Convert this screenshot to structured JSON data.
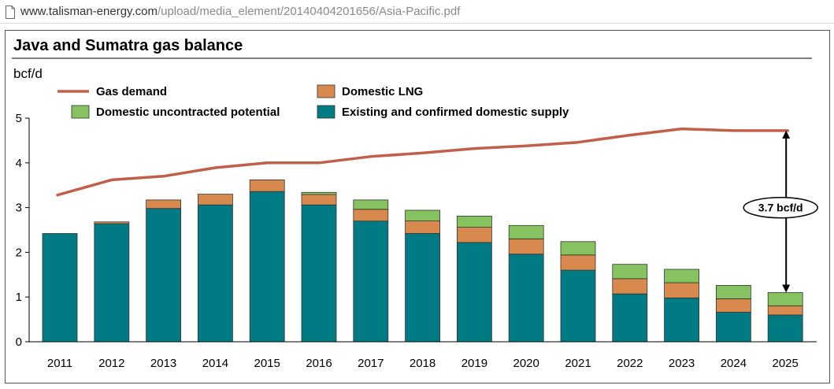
{
  "browser": {
    "url_host": "www.talisman-energy.com",
    "url_path": "/upload/media_element/20140404201656/Asia-Pacific.pdf",
    "page_icon": "document-icon"
  },
  "colors": {
    "demand_line": "#c0604a",
    "existing": "#007b83",
    "lng": "#d88a4e",
    "uncontracted": "#86c260",
    "bar_outline": "#333333"
  },
  "chart_data": {
    "type": "bar",
    "stacked": true,
    "title": "Java and Sumatra gas balance",
    "ylabel": "bcf/d",
    "xlabel": "",
    "ylim": [
      0,
      5
    ],
    "yticks": [
      0,
      1,
      2,
      3,
      4,
      5
    ],
    "grid": false,
    "legend_position": "top-left",
    "categories": [
      "2011",
      "2012",
      "2013",
      "2014",
      "2015",
      "2016",
      "2017",
      "2018",
      "2019",
      "2020",
      "2021",
      "2022",
      "2023",
      "2024",
      "2025"
    ],
    "series": [
      {
        "name": "Existing and confirmed domestic supply",
        "kind": "bar",
        "values": [
          2.42,
          2.64,
          2.98,
          3.06,
          3.36,
          3.06,
          2.7,
          2.42,
          2.22,
          1.96,
          1.6,
          1.07,
          0.98,
          0.66,
          0.6
        ]
      },
      {
        "name": "Domestic LNG",
        "kind": "bar",
        "values": [
          0,
          0.04,
          0.19,
          0.24,
          0.26,
          0.23,
          0.26,
          0.28,
          0.34,
          0.34,
          0.34,
          0.34,
          0.34,
          0.3,
          0.2
        ]
      },
      {
        "name": "Domestic uncontracted potential",
        "kind": "bar",
        "values": [
          0,
          0,
          0,
          0,
          0,
          0.05,
          0.21,
          0.24,
          0.25,
          0.3,
          0.3,
          0.32,
          0.3,
          0.3,
          0.3
        ]
      },
      {
        "name": "Gas demand",
        "kind": "line",
        "values": [
          3.28,
          3.62,
          3.7,
          3.89,
          4.0,
          4.0,
          4.14,
          4.22,
          4.32,
          4.38,
          4.46,
          4.62,
          4.76,
          4.72,
          4.72
        ]
      }
    ],
    "annotations": [
      {
        "text": "3.7 bcf/d",
        "category": "2025",
        "from": 1.1,
        "to": 4.72
      }
    ]
  }
}
